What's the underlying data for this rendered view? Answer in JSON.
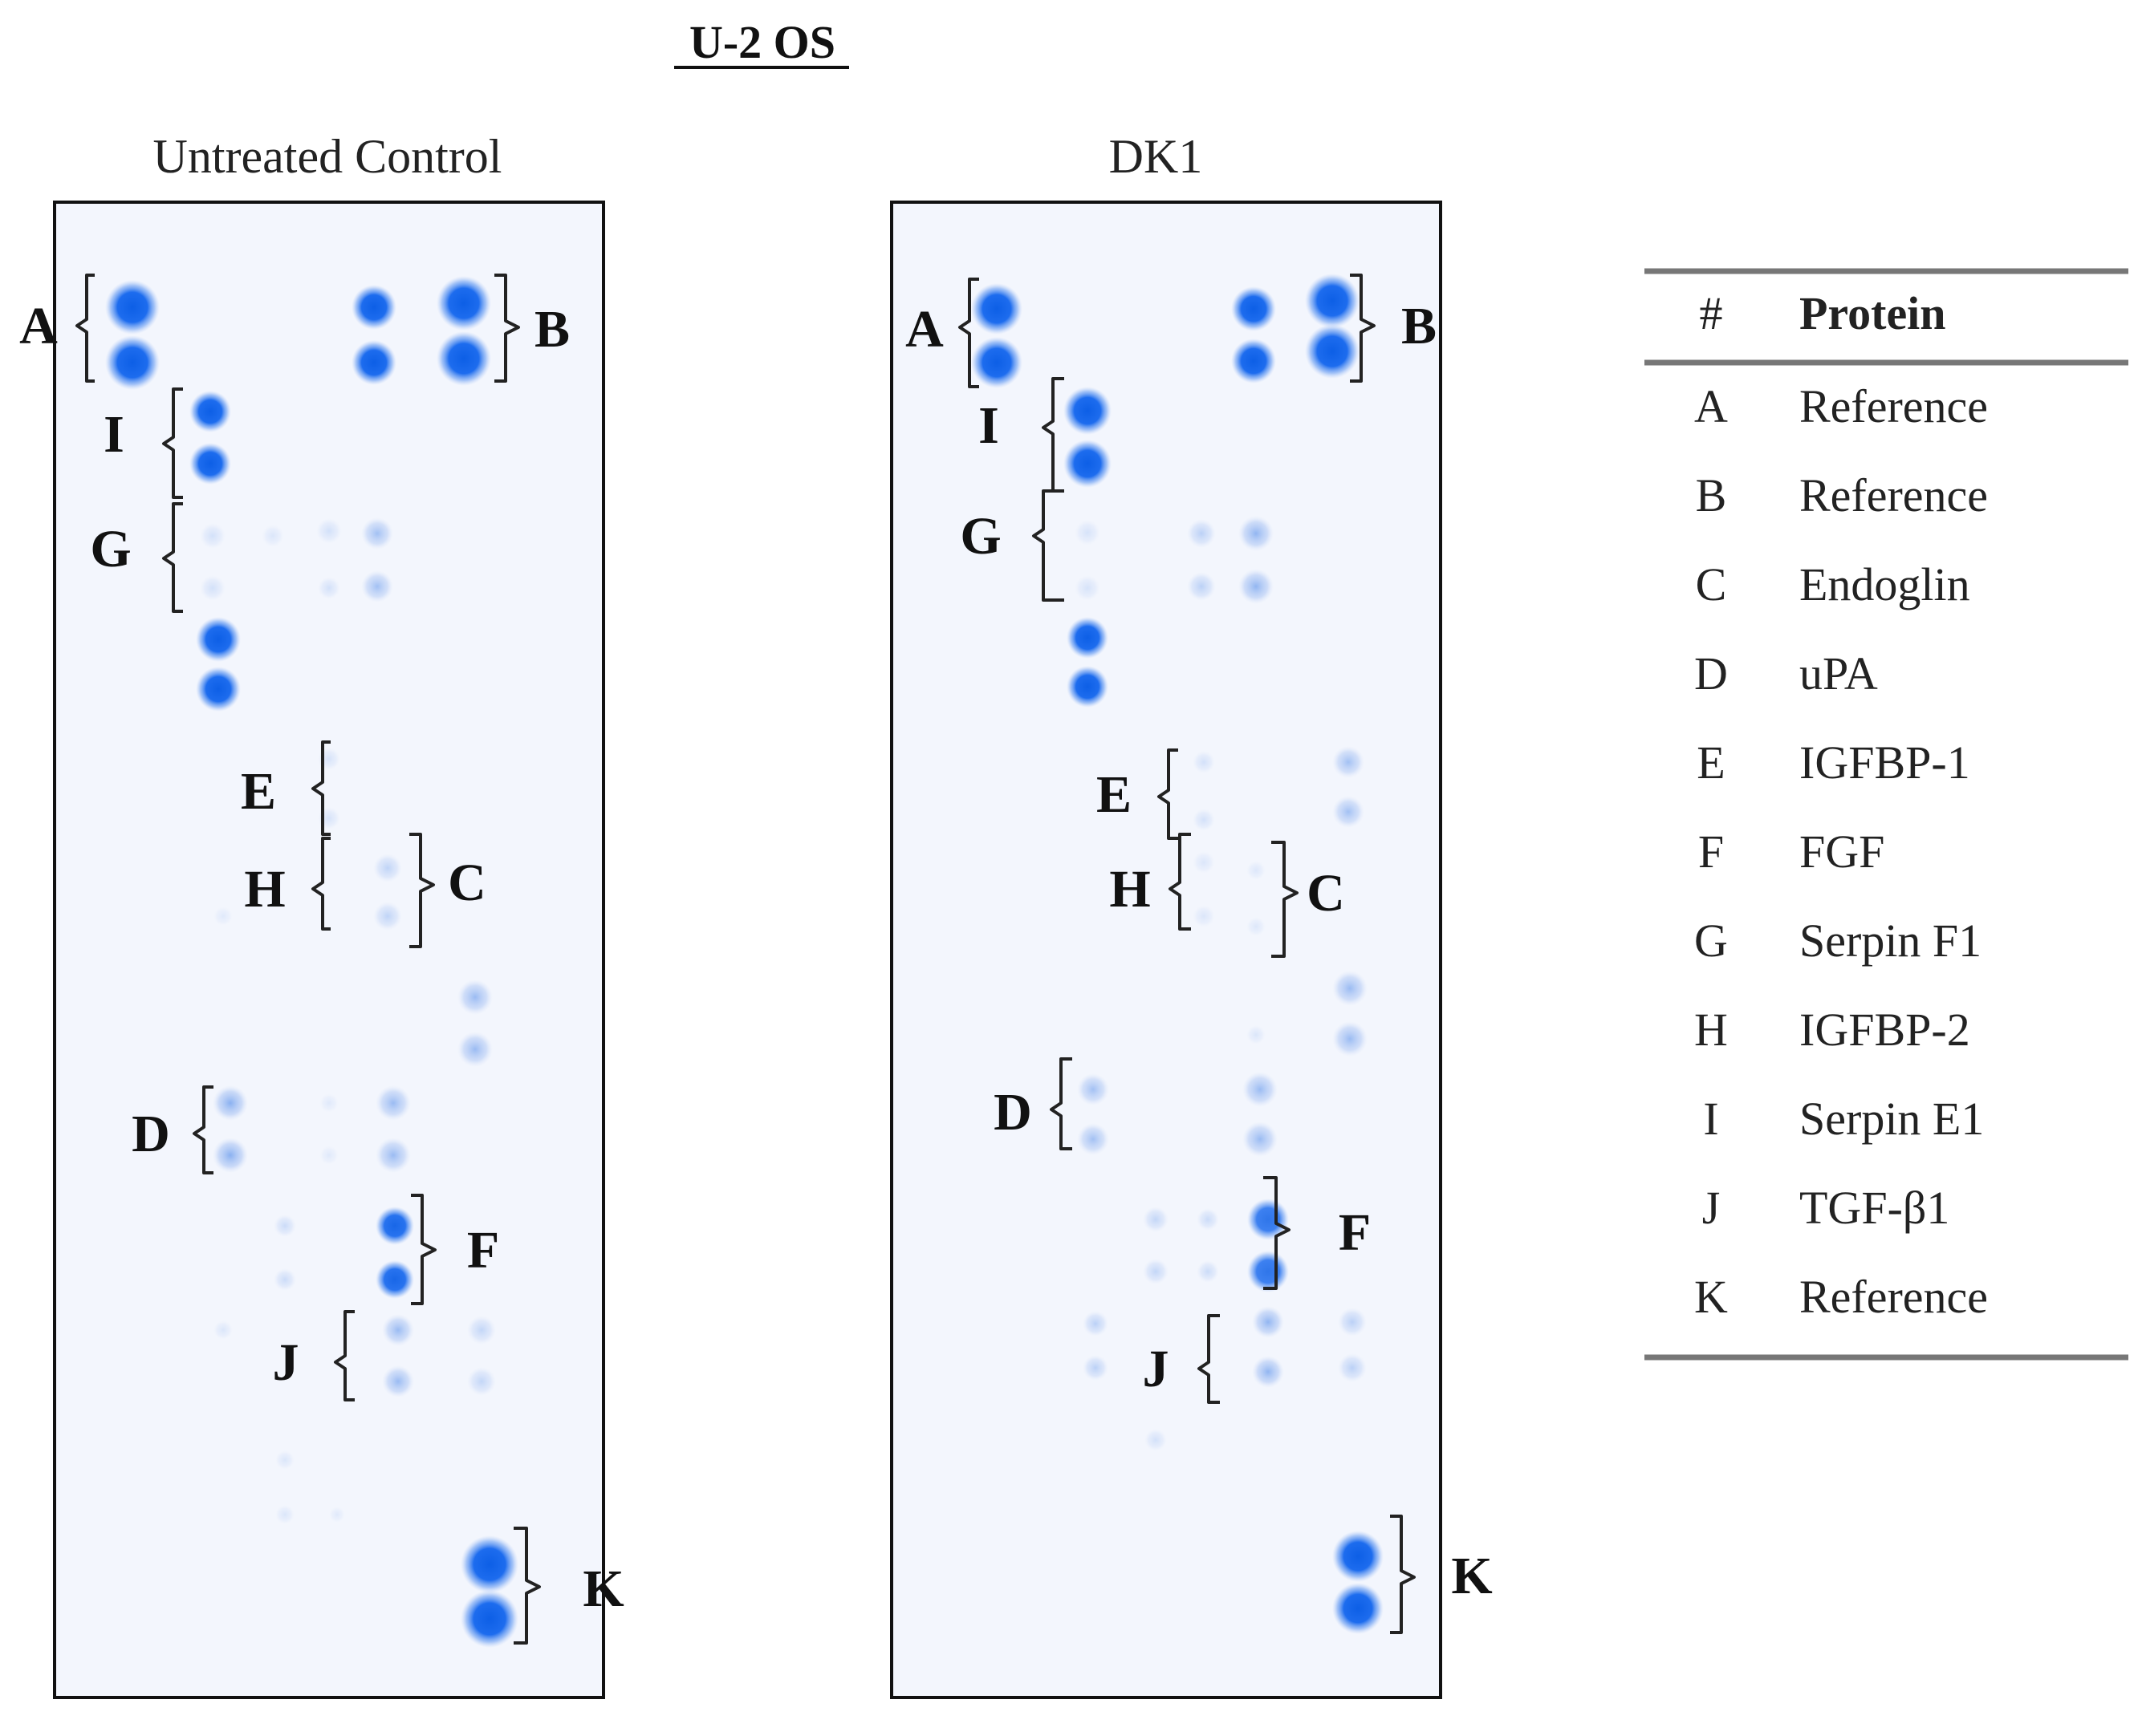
{
  "title": "U-2 OS",
  "colors": {
    "spot": "#1a6ae8",
    "membrane": "#f3f6fd",
    "frame": "#111111",
    "text": "#222222",
    "rule": "#777777"
  },
  "panels": [
    {
      "id": "control",
      "title": "Untreated Control",
      "labels": [
        "A",
        "B",
        "I",
        "G",
        "E",
        "H",
        "C",
        "D",
        "F",
        "J",
        "K"
      ]
    },
    {
      "id": "dk1",
      "title": "DK1",
      "labels": [
        "A",
        "B",
        "I",
        "G",
        "E",
        "H",
        "C",
        "D",
        "F",
        "J",
        "K"
      ]
    }
  ],
  "legend": {
    "col_number": "#",
    "col_protein": "Protein",
    "rows": [
      {
        "key": "A",
        "protein": "Reference"
      },
      {
        "key": "B",
        "protein": "Reference"
      },
      {
        "key": "C",
        "protein": "Endoglin"
      },
      {
        "key": "D",
        "protein": "uPA"
      },
      {
        "key": "E",
        "protein": "IGFBP-1"
      },
      {
        "key": "F",
        "protein": "FGF"
      },
      {
        "key": "G",
        "protein": "Serpin F1"
      },
      {
        "key": "H",
        "protein": "IGFBP-2"
      },
      {
        "key": "I",
        "protein": "Serpin E1"
      },
      {
        "key": "J",
        "protein": "TGF-β1"
      },
      {
        "key": "K",
        "protein": "Reference"
      }
    ]
  }
}
